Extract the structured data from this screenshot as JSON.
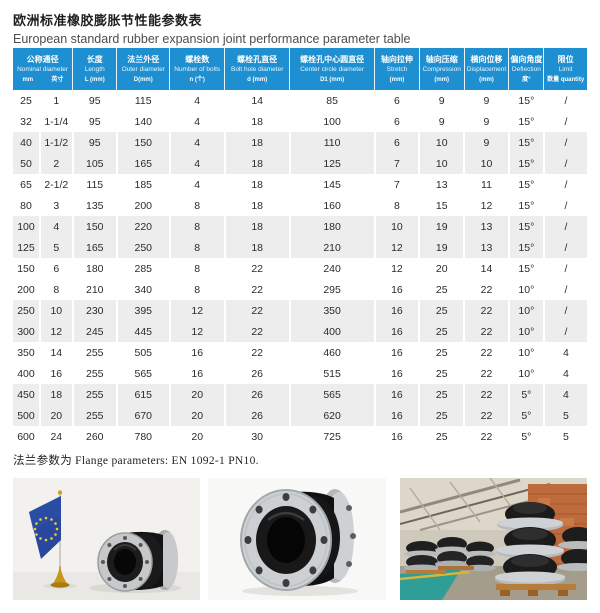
{
  "page": {
    "title_zh": "欧洲标准橡胶膨胀节性能参数表",
    "title_en": "European standard rubber expansion joint performance parameter table",
    "footer_note": "法兰参数为 Flange parameters: EN 1092-1 PN10."
  },
  "colors": {
    "header_blue": "#1e8fd0",
    "stripe_gray": "#ededed",
    "eu_flag_blue": "#27489c",
    "star_gold": "#f8c93e"
  },
  "table": {
    "columns": [
      {
        "zh": "公称通径",
        "en": "Nominal diameter",
        "subs": [
          "mm",
          "英寸"
        ]
      },
      {
        "zh": "长度",
        "en": "Length",
        "unit": "L (mm)"
      },
      {
        "zh": "法兰外径",
        "en": "Outer diameter",
        "unit": "D(mm)"
      },
      {
        "zh": "螺栓数",
        "en": "Number of bolts",
        "unit": "n (个)"
      },
      {
        "zh": "螺栓孔直径",
        "en": "Bolt hole diameter",
        "unit": "d (mm)"
      },
      {
        "zh": "螺栓孔中心圆直径",
        "en": "Center circle diameter",
        "unit": "D1 (mm)"
      },
      {
        "zh": "轴向拉伸",
        "en": "Stretch",
        "unit": "(mm)"
      },
      {
        "zh": "轴向压缩",
        "en": "Compression",
        "unit": "(mm)"
      },
      {
        "zh": "横向位移",
        "en": "Displacement",
        "unit": "(mm)"
      },
      {
        "zh": "偏向角度",
        "en": "Deflection",
        "unit": "度°"
      },
      {
        "zh": "限位",
        "en": "Limit",
        "unit": "数量 quantity"
      }
    ],
    "rows": [
      [
        "25",
        "1",
        "95",
        "115",
        "4",
        "14",
        "85",
        "6",
        "9",
        "9",
        "15°",
        "/"
      ],
      [
        "32",
        "1-1/4",
        "95",
        "140",
        "4",
        "18",
        "100",
        "6",
        "9",
        "9",
        "15°",
        "/"
      ],
      [
        "40",
        "1-1/2",
        "95",
        "150",
        "4",
        "18",
        "110",
        "6",
        "10",
        "9",
        "15°",
        "/"
      ],
      [
        "50",
        "2",
        "105",
        "165",
        "4",
        "18",
        "125",
        "7",
        "10",
        "10",
        "15°",
        "/"
      ],
      [
        "65",
        "2-1/2",
        "115",
        "185",
        "4",
        "18",
        "145",
        "7",
        "13",
        "11",
        "15°",
        "/"
      ],
      [
        "80",
        "3",
        "135",
        "200",
        "8",
        "18",
        "160",
        "8",
        "15",
        "12",
        "15°",
        "/"
      ],
      [
        "100",
        "4",
        "150",
        "220",
        "8",
        "18",
        "180",
        "10",
        "19",
        "13",
        "15°",
        "/"
      ],
      [
        "125",
        "5",
        "165",
        "250",
        "8",
        "18",
        "210",
        "12",
        "19",
        "13",
        "15°",
        "/"
      ],
      [
        "150",
        "6",
        "180",
        "285",
        "8",
        "22",
        "240",
        "12",
        "20",
        "14",
        "15°",
        "/"
      ],
      [
        "200",
        "8",
        "210",
        "340",
        "8",
        "22",
        "295",
        "16",
        "25",
        "22",
        "10°",
        "/"
      ],
      [
        "250",
        "10",
        "230",
        "395",
        "12",
        "22",
        "350",
        "16",
        "25",
        "22",
        "10°",
        "/"
      ],
      [
        "300",
        "12",
        "245",
        "445",
        "12",
        "22",
        "400",
        "16",
        "25",
        "22",
        "10°",
        "/"
      ],
      [
        "350",
        "14",
        "255",
        "505",
        "16",
        "22",
        "460",
        "16",
        "25",
        "22",
        "10°",
        "4"
      ],
      [
        "400",
        "16",
        "255",
        "565",
        "16",
        "26",
        "515",
        "16",
        "25",
        "22",
        "10°",
        "4"
      ],
      [
        "450",
        "18",
        "255",
        "615",
        "20",
        "26",
        "565",
        "16",
        "25",
        "22",
        "5°",
        "4"
      ],
      [
        "500",
        "20",
        "255",
        "670",
        "20",
        "26",
        "620",
        "16",
        "25",
        "22",
        "5°",
        "5"
      ],
      [
        "600",
        "24",
        "260",
        "780",
        "20",
        "30",
        "725",
        "16",
        "25",
        "22",
        "5°",
        "5"
      ]
    ]
  },
  "photos": [
    {
      "name": "eu-flag-and-rubber-joint-photo"
    },
    {
      "name": "rubber-expansion-joint-closeup-photo"
    },
    {
      "name": "warehouse-joint-stock-photo"
    }
  ]
}
